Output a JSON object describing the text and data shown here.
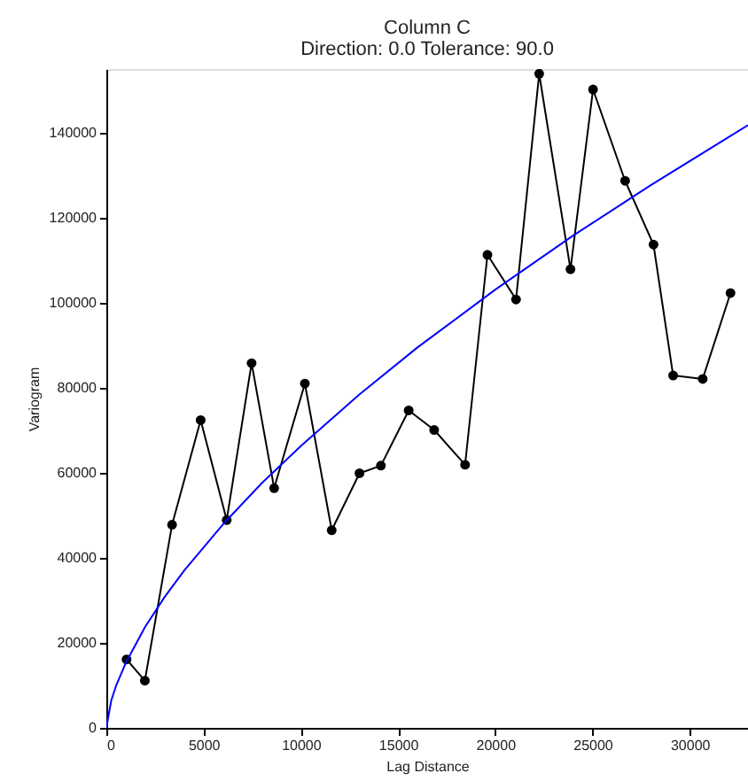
{
  "chart_data": {
    "type": "line",
    "title": "Column C",
    "subtitle": "Direction: 0.0   Tolerance: 90.0",
    "xlabel": "Lag Distance",
    "ylabel": "Variogram",
    "xlim": [
      0,
      33000
    ],
    "ylim": [
      0,
      155000
    ],
    "xticks": [
      0,
      5000,
      10000,
      15000,
      20000,
      25000,
      30000
    ],
    "yticks": [
      0,
      20000,
      40000,
      60000,
      80000,
      100000,
      120000,
      140000
    ],
    "grid": false,
    "series": [
      {
        "type": "line",
        "color": "#000000",
        "marker": "circle",
        "line_style": "solid",
        "x": [
          1040,
          1980,
          3380,
          4850,
          6190,
          7470,
          8630,
          10210,
          11590,
          13020,
          14120,
          15550,
          16860,
          18450,
          19600,
          21070,
          22260,
          23870,
          25030,
          26680,
          28140,
          29150,
          30670,
          32100
        ],
        "values": [
          16100,
          11100,
          47800,
          72400,
          48900,
          85800,
          56400,
          81000,
          46500,
          59900,
          61700,
          74700,
          70100,
          61900,
          111300,
          100800,
          153900,
          107900,
          150200,
          128700,
          113700,
          82900,
          82100,
          102300
        ]
      },
      {
        "type": "line",
        "color": "#0000ff",
        "marker": "none",
        "line_style": "solid",
        "x": [
          0,
          250,
          500,
          1000,
          2000,
          3000,
          4000,
          6000,
          8000,
          10000,
          13000,
          16000,
          20000,
          24000,
          28000,
          33000
        ],
        "values": [
          0,
          6400,
          9900,
          15300,
          23800,
          30800,
          37000,
          47900,
          57600,
          66300,
          78400,
          89500,
          103100,
          115800,
          127700,
          141800
        ]
      }
    ]
  }
}
